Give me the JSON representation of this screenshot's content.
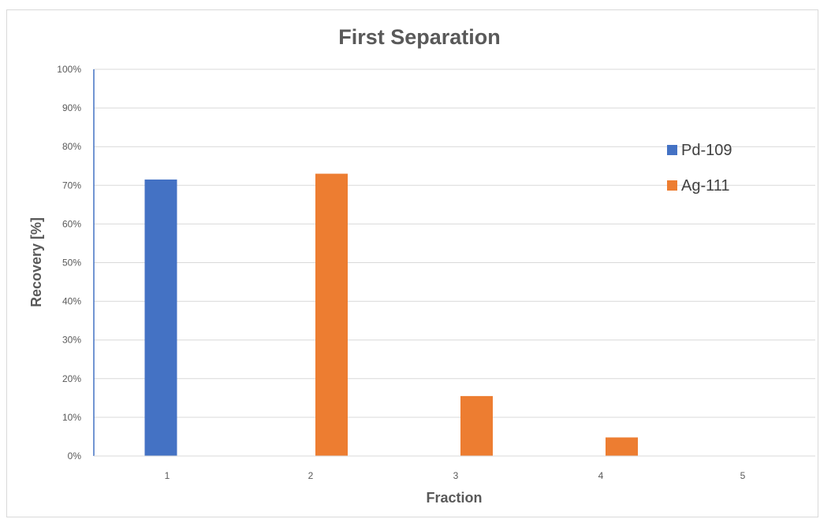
{
  "chart_data": {
    "type": "bar",
    "title": "First Separation",
    "xlabel": "Fraction",
    "ylabel": "Recovery [%]",
    "categories": [
      "1",
      "2",
      "3",
      "4",
      "5"
    ],
    "series": [
      {
        "name": "Pd-109",
        "color": "#4472c4",
        "values": [
          71.5,
          0,
          0,
          0,
          0
        ]
      },
      {
        "name": "Ag-111",
        "color": "#ed7d31",
        "values": [
          0,
          73,
          15.5,
          4.8,
          0
        ]
      }
    ],
    "ylim": [
      0,
      100
    ],
    "yticks": [
      "0%",
      "10%",
      "20%",
      "30%",
      "40%",
      "50%",
      "60%",
      "70%",
      "80%",
      "90%",
      "100%"
    ],
    "grid": true,
    "legend_position": "right"
  }
}
